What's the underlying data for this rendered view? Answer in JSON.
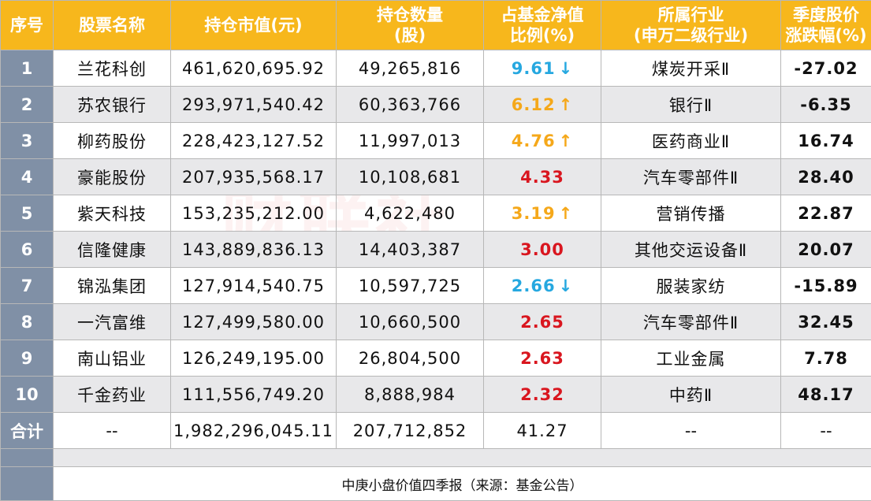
{
  "headers": {
    "idx": "序号",
    "name": "股票名称",
    "value": "持仓市值(元)",
    "qty_line1": "持仓数量",
    "qty_line2": "(股)",
    "pct_line1": "占基金净值",
    "pct_line2": "比例(%)",
    "ind_line1": "所属行业",
    "ind_line2": "(申万二级行业)",
    "chg_line1": "季度股价",
    "chg_line2": "涨跌幅(%)"
  },
  "rows": [
    {
      "idx": "1",
      "name": "兰花科创",
      "value": "461,620,695.92",
      "qty": "49,265,816",
      "pct": "9.61",
      "arrow": "↓",
      "trend": "down",
      "industry": "煤炭开采Ⅱ",
      "chg": "-27.02",
      "chg_sign": "neg"
    },
    {
      "idx": "2",
      "name": "苏农银行",
      "value": "293,971,540.42",
      "qty": "60,363,766",
      "pct": "6.12",
      "arrow": "↑",
      "trend": "up",
      "industry": "银行Ⅱ",
      "chg": "-6.35",
      "chg_sign": "neg"
    },
    {
      "idx": "3",
      "name": "柳药股份",
      "value": "228,423,127.52",
      "qty": "11,997,013",
      "pct": "4.76",
      "arrow": "↑",
      "trend": "up",
      "industry": "医药商业Ⅱ",
      "chg": "16.74",
      "chg_sign": "pos"
    },
    {
      "idx": "4",
      "name": "豪能股份",
      "value": "207,935,568.17",
      "qty": "10,108,681",
      "pct": "4.33",
      "arrow": "",
      "trend": "new",
      "industry": "汽车零部件Ⅱ",
      "chg": "28.40",
      "chg_sign": "pos"
    },
    {
      "idx": "5",
      "name": "紫天科技",
      "value": "153,235,212.00",
      "qty": "4,622,480",
      "pct": "3.19",
      "arrow": "↑",
      "trend": "up",
      "industry": "营销传播",
      "chg": "22.87",
      "chg_sign": "pos"
    },
    {
      "idx": "6",
      "name": "信隆健康",
      "value": "143,889,836.13",
      "qty": "14,403,387",
      "pct": "3.00",
      "arrow": "",
      "trend": "new",
      "industry": "其他交运设备Ⅱ",
      "chg": "20.07",
      "chg_sign": "pos"
    },
    {
      "idx": "7",
      "name": "锦泓集团",
      "value": "127,914,540.75",
      "qty": "10,597,725",
      "pct": "2.66",
      "arrow": "↓",
      "trend": "down",
      "industry": "服装家纺",
      "chg": "-15.89",
      "chg_sign": "neg"
    },
    {
      "idx": "8",
      "name": "一汽富维",
      "value": "127,499,580.00",
      "qty": "10,660,500",
      "pct": "2.65",
      "arrow": "",
      "trend": "new",
      "industry": "汽车零部件Ⅱ",
      "chg": "32.45",
      "chg_sign": "pos"
    },
    {
      "idx": "9",
      "name": "南山铝业",
      "value": "126,249,195.00",
      "qty": "26,804,500",
      "pct": "2.63",
      "arrow": "",
      "trend": "new",
      "industry": "工业金属",
      "chg": "7.78",
      "chg_sign": "pos"
    },
    {
      "idx": "10",
      "name": "千金药业",
      "value": "111,556,749.20",
      "qty": "8,888,984",
      "pct": "2.32",
      "arrow": "",
      "trend": "new",
      "industry": "中药Ⅱ",
      "chg": "48.17",
      "chg_sign": "pos"
    }
  ],
  "total": {
    "label": "合计",
    "name": "--",
    "value": "1,982,296,045.11",
    "qty": "207,712,852",
    "pct": "41.27",
    "industry": "--",
    "chg": "--"
  },
  "footer": "中庚小盘价值四季报（来源：基金公告）",
  "colors": {
    "header_bg": "#f7b71c",
    "index_bg": "#8090a6",
    "alt_row": "#e8e8ea",
    "up_orange": "#f5a81a",
    "down_blue": "#26a8e0",
    "red": "#d9161f",
    "green": "#1a9e3f"
  }
}
